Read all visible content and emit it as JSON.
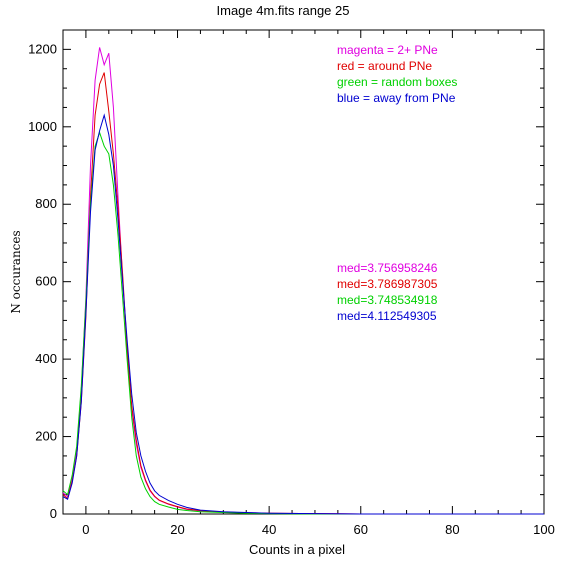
{
  "chart_data": {
    "type": "line",
    "title": "Image 4m.fits    range 25",
    "xlabel": "Counts in a pixel",
    "ylabel": "N occurances",
    "xlim": [
      -5,
      100
    ],
    "ylim": [
      0,
      1250
    ],
    "x_ticks": [
      0,
      20,
      40,
      60,
      80,
      100
    ],
    "y_ticks": [
      0,
      200,
      400,
      600,
      800,
      1000,
      1200
    ],
    "grid": false,
    "legend_position": "top-right",
    "series": [
      {
        "name": "magenta = 2+ PNe",
        "color": "#e000e0",
        "median_label": "med=3.756958246",
        "x": [
          -5,
          -4,
          -3,
          -2,
          -1,
          0,
          1,
          2,
          3,
          4,
          5,
          6,
          7,
          8,
          9,
          10,
          11,
          12,
          13,
          14,
          15,
          16,
          18,
          20,
          22,
          25,
          30,
          35,
          40,
          50,
          60,
          70,
          80,
          90,
          100
        ],
        "y": [
          55,
          45,
          95,
          165,
          320,
          560,
          900,
          1120,
          1205,
          1160,
          1190,
          1050,
          820,
          610,
          420,
          270,
          180,
          120,
          85,
          60,
          45,
          35,
          25,
          18,
          12,
          8,
          5,
          3,
          2,
          1,
          0,
          0,
          0,
          0,
          0
        ]
      },
      {
        "name": "red = around PNe",
        "color": "#e00000",
        "median_label": "med=3.786987305",
        "x": [
          -5,
          -4,
          -3,
          -2,
          -1,
          0,
          1,
          2,
          3,
          4,
          5,
          6,
          7,
          8,
          9,
          10,
          11,
          12,
          13,
          14,
          15,
          16,
          18,
          20,
          22,
          25,
          30,
          35,
          40,
          50,
          60,
          70,
          80,
          90,
          100
        ],
        "y": [
          50,
          40,
          85,
          150,
          290,
          510,
          820,
          1030,
          1110,
          1140,
          1040,
          930,
          790,
          620,
          430,
          280,
          190,
          125,
          88,
          62,
          46,
          36,
          26,
          19,
          13,
          9,
          5,
          3,
          2,
          1,
          0,
          0,
          0,
          0,
          0
        ]
      },
      {
        "name": "green = random boxes",
        "color": "#00d000",
        "median_label": "med=3.748534918",
        "x": [
          -5,
          -4,
          -3,
          -2,
          -1,
          0,
          1,
          2,
          3,
          4,
          5,
          6,
          7,
          8,
          9,
          10,
          11,
          12,
          13,
          14,
          15,
          16,
          18,
          20,
          22,
          25,
          30,
          35,
          40,
          50,
          60,
          70,
          80,
          90,
          100
        ],
        "y": [
          60,
          50,
          100,
          175,
          330,
          550,
          800,
          950,
          985,
          950,
          930,
          850,
          720,
          560,
          400,
          250,
          150,
          95,
          65,
          45,
          32,
          25,
          18,
          12,
          9,
          6,
          4,
          2,
          1,
          0,
          0,
          0,
          0,
          0,
          0
        ]
      },
      {
        "name": "blue = away from PNe",
        "color": "#0000d0",
        "median_label": "med=4.112549305",
        "x": [
          -5,
          -4,
          -3,
          -2,
          -1,
          0,
          1,
          2,
          3,
          4,
          5,
          6,
          7,
          8,
          9,
          10,
          11,
          12,
          13,
          14,
          15,
          16,
          18,
          20,
          22,
          25,
          30,
          35,
          40,
          50,
          60,
          70,
          80,
          90,
          100
        ],
        "y": [
          45,
          38,
          80,
          150,
          290,
          520,
          780,
          940,
          990,
          1030,
          980,
          900,
          760,
          600,
          450,
          310,
          210,
          150,
          110,
          80,
          60,
          48,
          35,
          25,
          17,
          10,
          6,
          4,
          2,
          1,
          0,
          0,
          0,
          0,
          0
        ]
      }
    ]
  }
}
